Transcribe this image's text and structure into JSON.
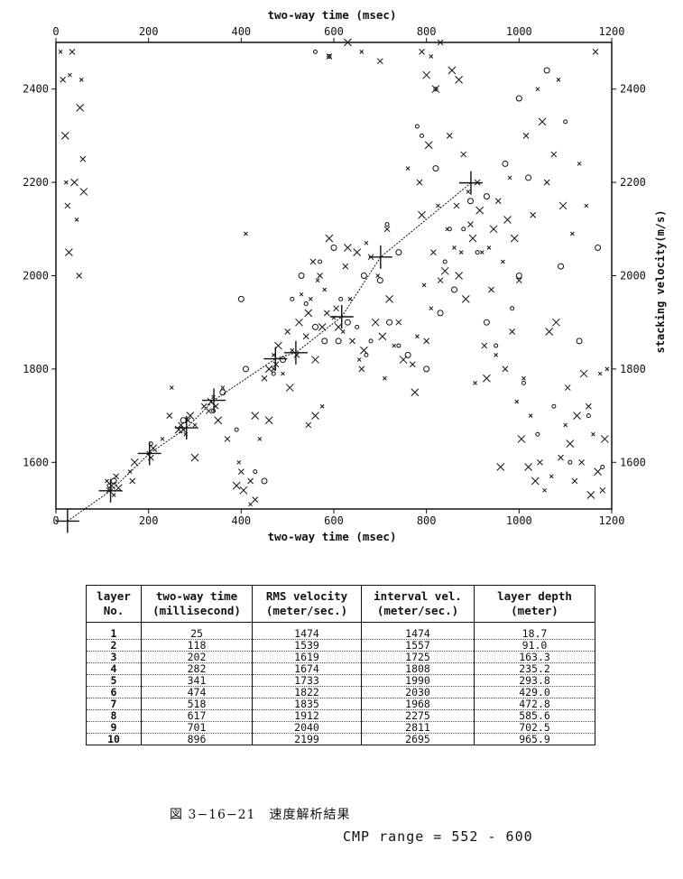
{
  "chart_data": {
    "type": "scatter",
    "xlabel_top": "two-way time (msec)",
    "xlabel_bottom": "two-way time (msec)",
    "ylabel_right": "stacking velocity(m/s)",
    "xlim": [
      0,
      1200
    ],
    "ylim": [
      1500,
      2500
    ],
    "x_ticks": [
      0,
      200,
      400,
      600,
      800,
      1000,
      1200
    ],
    "y_ticks": [
      1600,
      1800,
      2000,
      2200,
      2400
    ],
    "picked_velocity_function": [
      {
        "x": 25,
        "y": 1474
      },
      {
        "x": 118,
        "y": 1539
      },
      {
        "x": 202,
        "y": 1619
      },
      {
        "x": 282,
        "y": 1674
      },
      {
        "x": 341,
        "y": 1733
      },
      {
        "x": 474,
        "y": 1822
      },
      {
        "x": 518,
        "y": 1835
      },
      {
        "x": 617,
        "y": 1912
      },
      {
        "x": 701,
        "y": 2040
      },
      {
        "x": 896,
        "y": 2199
      }
    ],
    "semblance_peaks_x": [
      [
        10,
        2480
      ],
      [
        15,
        2420
      ],
      [
        20,
        2300
      ],
      [
        22,
        2200
      ],
      [
        25,
        2150
      ],
      [
        28,
        2050
      ],
      [
        30,
        2430
      ],
      [
        35,
        2480
      ],
      [
        40,
        2200
      ],
      [
        45,
        2120
      ],
      [
        50,
        2000
      ],
      [
        52,
        2360
      ],
      [
        55,
        2420
      ],
      [
        58,
        2250
      ],
      [
        60,
        2180
      ],
      [
        110,
        1560
      ],
      [
        115,
        1540
      ],
      [
        120,
        1550
      ],
      [
        125,
        1530
      ],
      [
        130,
        1570
      ],
      [
        135,
        1545
      ],
      [
        160,
        1580
      ],
      [
        165,
        1560
      ],
      [
        170,
        1600
      ],
      [
        200,
        1620
      ],
      [
        205,
        1610
      ],
      [
        210,
        1630
      ],
      [
        230,
        1650
      ],
      [
        270,
        1680
      ],
      [
        275,
        1670
      ],
      [
        280,
        1660
      ],
      [
        285,
        1690
      ],
      [
        290,
        1700
      ],
      [
        300,
        1680
      ],
      [
        320,
        1720
      ],
      [
        335,
        1730
      ],
      [
        340,
        1740
      ],
      [
        345,
        1720
      ],
      [
        350,
        1690
      ],
      [
        360,
        1760
      ],
      [
        370,
        1650
      ],
      [
        390,
        1550
      ],
      [
        395,
        1600
      ],
      [
        400,
        1580
      ],
      [
        405,
        1540
      ],
      [
        410,
        2090
      ],
      [
        420,
        1560
      ],
      [
        430,
        1700
      ],
      [
        440,
        1650
      ],
      [
        450,
        1780
      ],
      [
        460,
        1800
      ],
      [
        470,
        1830
      ],
      [
        475,
        1810
      ],
      [
        480,
        1850
      ],
      [
        490,
        1790
      ],
      [
        500,
        1880
      ],
      [
        505,
        1760
      ],
      [
        510,
        1840
      ],
      [
        520,
        1830
      ],
      [
        525,
        1900
      ],
      [
        530,
        1960
      ],
      [
        540,
        1870
      ],
      [
        545,
        1920
      ],
      [
        550,
        1950
      ],
      [
        555,
        2030
      ],
      [
        560,
        1820
      ],
      [
        565,
        1990
      ],
      [
        570,
        2000
      ],
      [
        575,
        1890
      ],
      [
        580,
        1970
      ],
      [
        585,
        1920
      ],
      [
        590,
        2080
      ],
      [
        600,
        1910
      ],
      [
        605,
        1930
      ],
      [
        610,
        1890
      ],
      [
        620,
        1880
      ],
      [
        625,
        2020
      ],
      [
        630,
        2060
      ],
      [
        635,
        1950
      ],
      [
        640,
        1860
      ],
      [
        650,
        2050
      ],
      [
        655,
        1820
      ],
      [
        660,
        1800
      ],
      [
        665,
        1840
      ],
      [
        670,
        2070
      ],
      [
        680,
        2040
      ],
      [
        690,
        1900
      ],
      [
        695,
        2000
      ],
      [
        700,
        2460
      ],
      [
        705,
        1870
      ],
      [
        710,
        1780
      ],
      [
        715,
        2100
      ],
      [
        720,
        1950
      ],
      [
        730,
        1850
      ],
      [
        740,
        1900
      ],
      [
        750,
        1820
      ],
      [
        760,
        2230
      ],
      [
        770,
        1810
      ],
      [
        775,
        1750
      ],
      [
        780,
        1870
      ],
      [
        785,
        2200
      ],
      [
        790,
        2130
      ],
      [
        795,
        1980
      ],
      [
        800,
        1860
      ],
      [
        805,
        2280
      ],
      [
        810,
        1930
      ],
      [
        815,
        2050
      ],
      [
        820,
        2400
      ],
      [
        825,
        2150
      ],
      [
        830,
        1990
      ],
      [
        840,
        2010
      ],
      [
        845,
        2100
      ],
      [
        850,
        2300
      ],
      [
        855,
        2440
      ],
      [
        860,
        2060
      ],
      [
        865,
        2150
      ],
      [
        870,
        2000
      ],
      [
        875,
        2050
      ],
      [
        880,
        2260
      ],
      [
        885,
        1950
      ],
      [
        890,
        2180
      ],
      [
        895,
        2110
      ],
      [
        900,
        2080
      ],
      [
        905,
        1770
      ],
      [
        910,
        2200
      ],
      [
        915,
        2140
      ],
      [
        920,
        2050
      ],
      [
        925,
        1850
      ],
      [
        930,
        1780
      ],
      [
        935,
        2060
      ],
      [
        940,
        1970
      ],
      [
        945,
        2100
      ],
      [
        950,
        1830
      ],
      [
        955,
        2160
      ],
      [
        960,
        1590
      ],
      [
        965,
        2030
      ],
      [
        970,
        1800
      ],
      [
        975,
        2120
      ],
      [
        980,
        2210
      ],
      [
        985,
        1880
      ],
      [
        990,
        2080
      ],
      [
        995,
        1730
      ],
      [
        1000,
        1990
      ],
      [
        1005,
        1650
      ],
      [
        1010,
        1780
      ],
      [
        1015,
        2300
      ],
      [
        1020,
        1590
      ],
      [
        1025,
        1700
      ],
      [
        1030,
        2130
      ],
      [
        1035,
        1560
      ],
      [
        1040,
        2400
      ],
      [
        1045,
        1600
      ],
      [
        1050,
        2330
      ],
      [
        1055,
        1540
      ],
      [
        1060,
        2200
      ],
      [
        1065,
        1880
      ],
      [
        1070,
        1570
      ],
      [
        1075,
        2260
      ],
      [
        1080,
        1900
      ],
      [
        1085,
        2420
      ],
      [
        1090,
        1610
      ],
      [
        1095,
        2150
      ],
      [
        1100,
        1680
      ],
      [
        1105,
        1760
      ],
      [
        1110,
        1640
      ],
      [
        1115,
        2090
      ],
      [
        1120,
        1560
      ],
      [
        1125,
        1700
      ],
      [
        1130,
        2240
      ],
      [
        1135,
        1600
      ],
      [
        1140,
        1790
      ],
      [
        1145,
        2150
      ],
      [
        1150,
        1720
      ],
      [
        1155,
        1530
      ],
      [
        1160,
        1660
      ],
      [
        1165,
        2480
      ],
      [
        1170,
        1580
      ],
      [
        1175,
        1790
      ],
      [
        1180,
        1540
      ],
      [
        1185,
        1650
      ],
      [
        1190,
        1800
      ],
      [
        330,
        1710
      ],
      [
        265,
        1670
      ],
      [
        250,
        1760
      ],
      [
        245,
        1700
      ],
      [
        300,
        1610
      ],
      [
        420,
        1510
      ],
      [
        430,
        1520
      ],
      [
        460,
        1690
      ],
      [
        470,
        1800
      ],
      [
        545,
        1680
      ],
      [
        560,
        1700
      ],
      [
        575,
        1720
      ],
      [
        590,
        2470
      ],
      [
        630,
        2500
      ],
      [
        660,
        2480
      ],
      [
        790,
        2480
      ],
      [
        800,
        2430
      ],
      [
        810,
        2470
      ],
      [
        830,
        2500
      ],
      [
        870,
        2420
      ]
    ],
    "semblance_peaks_o": [
      [
        115,
        1550
      ],
      [
        125,
        1560
      ],
      [
        205,
        1640
      ],
      [
        275,
        1690
      ],
      [
        340,
        1710
      ],
      [
        360,
        1750
      ],
      [
        390,
        1670
      ],
      [
        410,
        1800
      ],
      [
        470,
        1790
      ],
      [
        490,
        1820
      ],
      [
        510,
        1950
      ],
      [
        530,
        2000
      ],
      [
        540,
        1940
      ],
      [
        560,
        1890
      ],
      [
        570,
        2030
      ],
      [
        580,
        1860
      ],
      [
        590,
        2470
      ],
      [
        600,
        2060
      ],
      [
        615,
        1950
      ],
      [
        630,
        1900
      ],
      [
        650,
        1890
      ],
      [
        665,
        2000
      ],
      [
        680,
        1860
      ],
      [
        700,
        1990
      ],
      [
        715,
        2110
      ],
      [
        720,
        1900
      ],
      [
        740,
        1850
      ],
      [
        760,
        1830
      ],
      [
        790,
        2300
      ],
      [
        800,
        1800
      ],
      [
        820,
        2400
      ],
      [
        830,
        1920
      ],
      [
        840,
        2030
      ],
      [
        860,
        1970
      ],
      [
        880,
        2100
      ],
      [
        895,
        2160
      ],
      [
        910,
        2050
      ],
      [
        930,
        2170
      ],
      [
        950,
        1850
      ],
      [
        970,
        2240
      ],
      [
        985,
        1930
      ],
      [
        1000,
        2380
      ],
      [
        1010,
        1770
      ],
      [
        1020,
        2210
      ],
      [
        1040,
        1660
      ],
      [
        1060,
        2440
      ],
      [
        1075,
        1720
      ],
      [
        1090,
        2020
      ],
      [
        1110,
        1600
      ],
      [
        1130,
        1860
      ],
      [
        1150,
        1700
      ],
      [
        1170,
        2060
      ],
      [
        1180,
        1590
      ],
      [
        740,
        2050
      ],
      [
        780,
        2320
      ],
      [
        820,
        2230
      ],
      [
        850,
        2100
      ],
      [
        450,
        1560
      ],
      [
        430,
        1580
      ],
      [
        400,
        1950
      ],
      [
        560,
        2480
      ],
      [
        1000,
        2000
      ],
      [
        1100,
        2330
      ],
      [
        610,
        1860
      ],
      [
        670,
        1830
      ],
      [
        930,
        1900
      ]
    ],
    "picked_markers": [
      [
        25,
        1474
      ],
      [
        118,
        1539
      ],
      [
        202,
        1619
      ],
      [
        282,
        1674
      ],
      [
        341,
        1733
      ],
      [
        474,
        1822
      ],
      [
        518,
        1835
      ],
      [
        617,
        1912
      ],
      [
        701,
        2040
      ],
      [
        896,
        2199
      ]
    ]
  },
  "table": {
    "headers": [
      "layer No.",
      "two-way time (millisecond)",
      "RMS velocity (meter/sec.)",
      "interval vel. (meter/sec.)",
      "layer depth (meter)"
    ],
    "header_line1": [
      "layer",
      "two-way time",
      "RMS velocity",
      "interval vel.",
      "layer depth"
    ],
    "header_line2": [
      "No.",
      "(millisecond)",
      "(meter/sec.)",
      "(meter/sec.)",
      "(meter)"
    ],
    "layer_no": [
      "1",
      "2",
      "3",
      "4",
      "5",
      "6",
      "7",
      "8",
      "9",
      "10"
    ],
    "two_way_time": [
      "25",
      "118",
      "202",
      "282",
      "341",
      "474",
      "518",
      "617",
      "701",
      "896"
    ],
    "rms_velocity": [
      "1474",
      "1539",
      "1619",
      "1674",
      "1733",
      "1822",
      "1835",
      "1912",
      "2040",
      "2199"
    ],
    "interval_vel": [
      "1474",
      "1557",
      "1725",
      "1808",
      "1990",
      "2030",
      "1968",
      "2275",
      "2811",
      "2695"
    ],
    "layer_depth": [
      "18.7",
      "91.0",
      "163.3",
      "235.2",
      "293.8",
      "429.0",
      "472.8",
      "585.6",
      "702.5",
      "965.9"
    ]
  },
  "caption": "図 3−16−21　速度解析結果",
  "cmp_range": "CMP range = 552 - 600"
}
